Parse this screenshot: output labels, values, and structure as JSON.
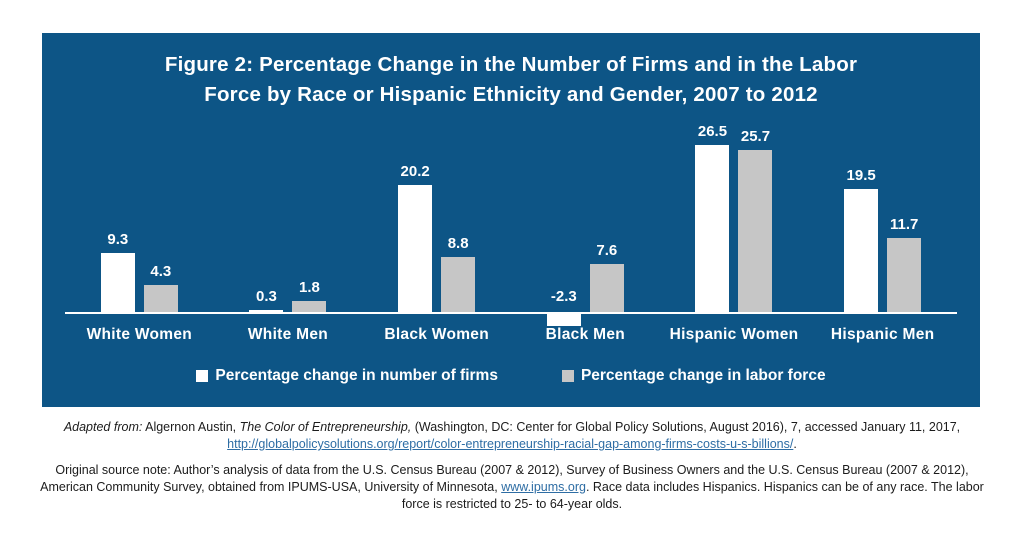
{
  "figure": {
    "title_line1": "Figure 2: Percentage Change in the Number of Firms and in the Labor",
    "title_line2": "Force by Race or Hispanic Ethnicity and Gender, 2007 to 2012"
  },
  "chart_data": {
    "type": "bar",
    "title": "Figure 2: Percentage Change in the Number of Firms and in the Labor Force by Race or Hispanic Ethnicity and Gender, 2007 to 2012",
    "categories": [
      "White Women",
      "White Men",
      "Black Women",
      "Black Men",
      "Hispanic Women",
      "Hispanic Men"
    ],
    "series": [
      {
        "name": "Percentage change in number of firms",
        "color": "#ffffff",
        "values": [
          9.3,
          0.3,
          20.2,
          -2.3,
          26.5,
          19.5
        ]
      },
      {
        "name": "Percentage change in labor force",
        "color": "#c6c6c6",
        "values": [
          4.3,
          1.8,
          8.8,
          7.6,
          25.7,
          11.7
        ]
      }
    ],
    "xlabel": "",
    "ylabel": "",
    "ylim": [
      -5,
      30
    ],
    "grid": false,
    "value_labels": true,
    "legend_position": "bottom",
    "background_color": "#0d5586",
    "axis_line_color": "#ffffff",
    "text_color": "#ffffff"
  },
  "legend": {
    "items": [
      {
        "label": "Percentage change in number of firms",
        "color": "#ffffff"
      },
      {
        "label": "Percentage change in labor force",
        "color": "#c6c6c6"
      }
    ]
  },
  "notes": {
    "adapted": {
      "prefix": "Adapted from:",
      "before_work": " Algernon Austin, ",
      "work_title": "The Color of Entrepreneurship,",
      "after_work": " (Washington, DC: Center for Global Policy Solutions, August 2016), 7, accessed January 11, 2017, ",
      "link": "http://globalpolicysolutions.org/report/color-entrepreneurship-racial-gap-among-firms-costs-u-s-billions/",
      "suffix": "."
    },
    "original": {
      "before_link": "Original source note: Author’s analysis of data from the U.S. Census Bureau (2007 & 2012), Survey of Business Owners and the U.S. Census Bureau (2007 & 2012), American Community Survey, obtained from IPUMS-USA, University of Minnesota, ",
      "link": "www.ipums.org",
      "after_link": ". Race data includes Hispanics. Hispanics can be of any race. The labor force is restricted to 25- to 64-year olds."
    }
  }
}
